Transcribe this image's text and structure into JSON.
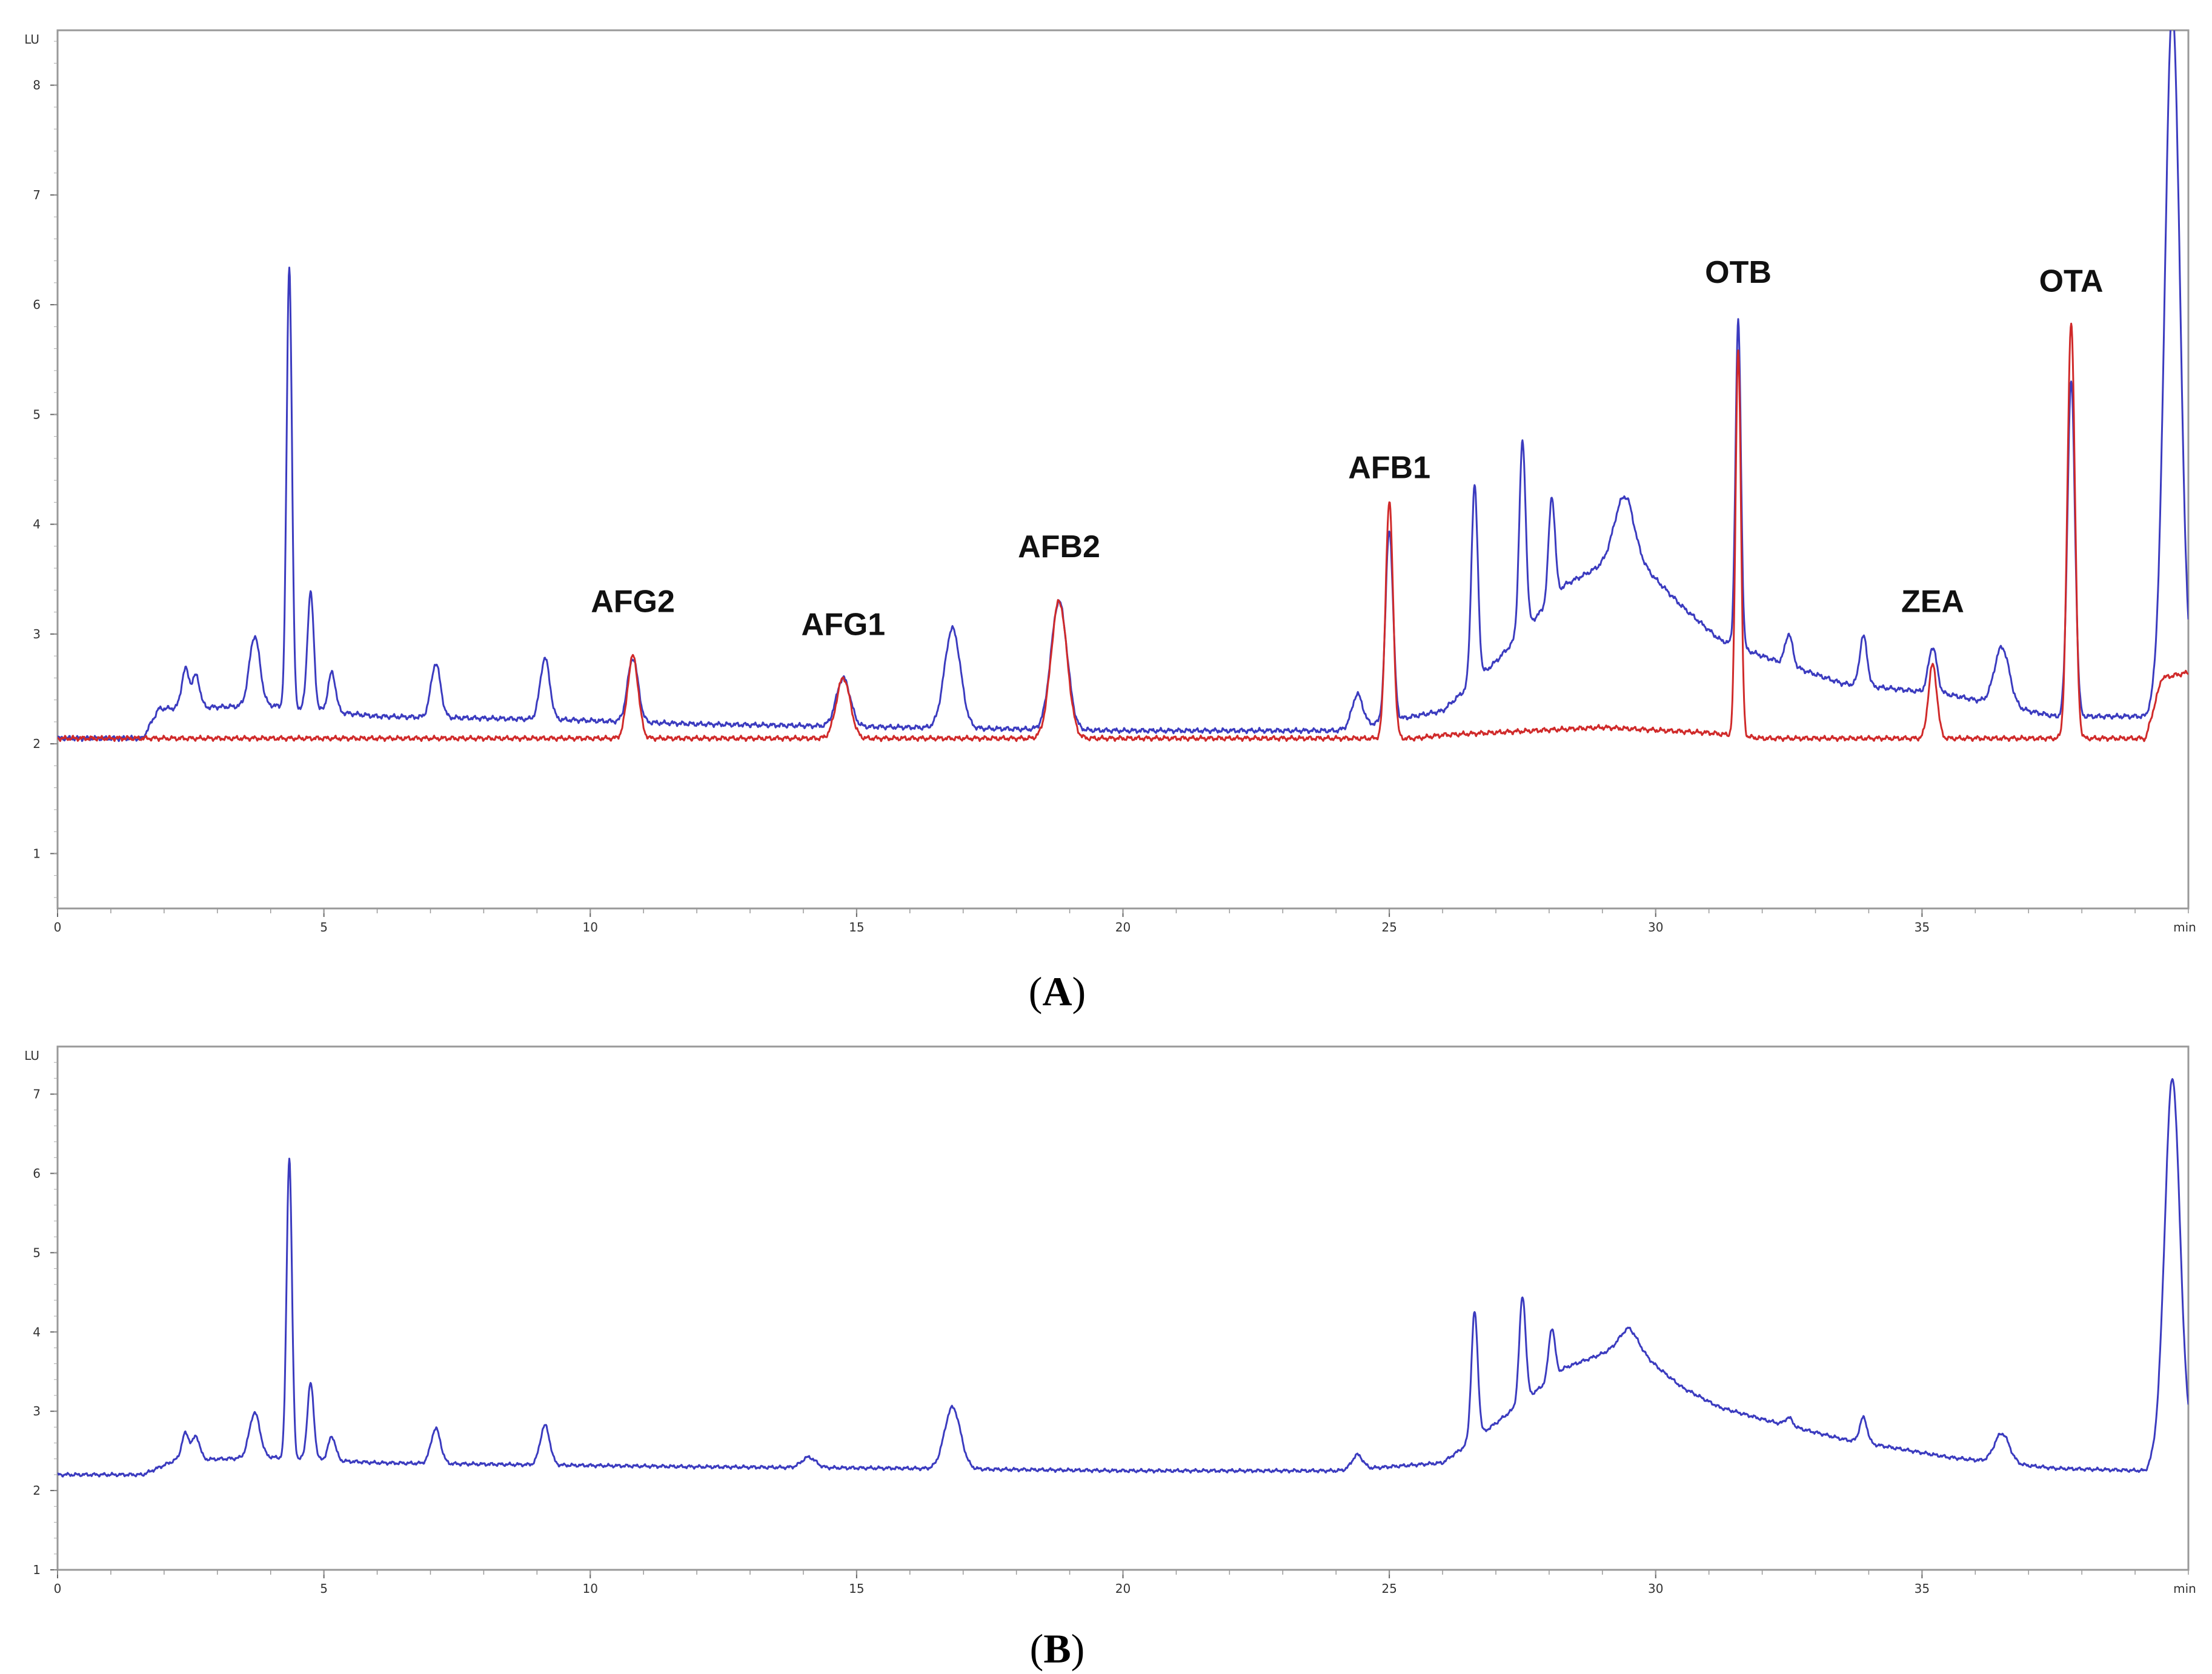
{
  "colors": {
    "sample": "#3b3bbf",
    "standard": "#d02a2a",
    "axis": "#666666",
    "frame": "#999999"
  },
  "chart_data": [
    {
      "type": "line",
      "panel_label": "A",
      "y_unit_label": "LU",
      "x_unit_label": "min",
      "xlim": [
        0,
        40
      ],
      "ylim": [
        0.5,
        8.5
      ],
      "x_ticks": [
        "0",
        "5",
        "10",
        "15",
        "20",
        "25",
        "30",
        "35"
      ],
      "y_ticks": [
        "1",
        "2",
        "3",
        "4",
        "5",
        "6",
        "7",
        "8"
      ],
      "series": [
        {
          "color": "#3b3bbf",
          "baseline": [
            [
              0,
              2.05
            ],
            [
              1.6,
              2.05
            ],
            [
              1.9,
              2.32
            ],
            [
              4.0,
              2.35
            ],
            [
              6,
              2.25
            ],
            [
              9.5,
              2.22
            ],
            [
              12,
              2.18
            ],
            [
              16,
              2.15
            ],
            [
              20,
              2.12
            ],
            [
              24,
              2.12
            ],
            [
              26,
              2.3
            ],
            [
              27.0,
              2.75
            ],
            [
              28.3,
              3.45
            ],
            [
              29.5,
              3.75
            ],
            [
              30.5,
              3.25
            ],
            [
              31.2,
              2.95
            ],
            [
              32.0,
              2.8
            ],
            [
              33.5,
              2.55
            ],
            [
              35.5,
              2.45
            ],
            [
              37.5,
              2.25
            ],
            [
              39.2,
              2.25
            ],
            [
              39.5,
              2.5
            ]
          ],
          "peaks": [
            {
              "t": 2.4,
              "h": 2.68,
              "w": 0.07
            },
            {
              "t": 2.6,
              "h": 2.62,
              "w": 0.07
            },
            {
              "t": 3.7,
              "h": 2.98,
              "w": 0.1
            },
            {
              "t": 4.35,
              "h": 6.35,
              "w": 0.05
            },
            {
              "t": 4.75,
              "h": 3.38,
              "w": 0.06
            },
            {
              "t": 5.15,
              "h": 2.65,
              "w": 0.07
            },
            {
              "t": 7.1,
              "h": 2.73,
              "w": 0.09
            },
            {
              "t": 9.15,
              "h": 2.78,
              "w": 0.09
            },
            {
              "t": 10.8,
              "h": 2.78,
              "w": 0.1
            },
            {
              "t": 14.75,
              "h": 2.6,
              "w": 0.13
            },
            {
              "t": 16.8,
              "h": 3.05,
              "w": 0.15
            },
            {
              "t": 18.8,
              "h": 3.3,
              "w": 0.15
            },
            {
              "t": 24.4,
              "h": 2.45,
              "w": 0.1
            },
            {
              "t": 25.0,
              "h": 3.95,
              "w": 0.07
            },
            {
              "t": 26.6,
              "h": 4.35,
              "w": 0.06
            },
            {
              "t": 27.5,
              "h": 4.75,
              "w": 0.06
            },
            {
              "t": 28.05,
              "h": 4.25,
              "w": 0.06
            },
            {
              "t": 29.4,
              "h": 4.25,
              "w": 0.18
            },
            {
              "t": 31.55,
              "h": 5.85,
              "w": 0.05
            },
            {
              "t": 32.5,
              "h": 3.0,
              "w": 0.07
            },
            {
              "t": 33.9,
              "h": 2.98,
              "w": 0.07
            },
            {
              "t": 35.2,
              "h": 2.88,
              "w": 0.08
            },
            {
              "t": 36.5,
              "h": 2.88,
              "w": 0.14
            },
            {
              "t": 37.8,
              "h": 5.3,
              "w": 0.07
            },
            {
              "t": 39.7,
              "h": 8.7,
              "w": 0.14
            }
          ]
        },
        {
          "color": "#d02a2a",
          "baseline": [
            [
              0,
              2.05
            ],
            [
              10,
              2.05
            ],
            [
              20,
              2.05
            ],
            [
              25.5,
              2.05
            ],
            [
              26.0,
              2.08
            ],
            [
              29.0,
              2.15
            ],
            [
              31.0,
              2.1
            ],
            [
              32.0,
              2.05
            ],
            [
              39.2,
              2.05
            ],
            [
              39.5,
              2.6
            ],
            [
              40,
              2.65
            ]
          ],
          "peaks": [
            {
              "t": 10.8,
              "h": 2.8,
              "w": 0.1
            },
            {
              "t": 14.75,
              "h": 2.6,
              "w": 0.13
            },
            {
              "t": 18.8,
              "h": 3.3,
              "w": 0.15
            },
            {
              "t": 25.0,
              "h": 4.2,
              "w": 0.07
            },
            {
              "t": 31.55,
              "h": 5.6,
              "w": 0.05
            },
            {
              "t": 35.2,
              "h": 2.72,
              "w": 0.08
            },
            {
              "t": 37.8,
              "h": 5.85,
              "w": 0.07
            }
          ]
        }
      ],
      "annotations": [
        {
          "text": "AFG2",
          "x": 10.8,
          "y": 3.2
        },
        {
          "text": "AFG1",
          "x": 14.75,
          "y": 2.99
        },
        {
          "text": "AFB2",
          "x": 18.8,
          "y": 3.7
        },
        {
          "text": "AFB1",
          "x": 25.0,
          "y": 4.42
        },
        {
          "text": "OTB",
          "x": 31.55,
          "y": 6.2
        },
        {
          "text": "ZEA",
          "x": 35.2,
          "y": 3.2
        },
        {
          "text": "OTA",
          "x": 37.8,
          "y": 6.12
        }
      ]
    },
    {
      "type": "line",
      "panel_label": "B",
      "y_unit_label": "LU",
      "x_unit_label": "min",
      "xlim": [
        0,
        40
      ],
      "ylim": [
        1,
        7.6
      ],
      "x_ticks": [
        "0",
        "5",
        "10",
        "15",
        "20",
        "25",
        "30",
        "35"
      ],
      "y_ticks": [
        "1",
        "2",
        "3",
        "4",
        "5",
        "6",
        "7"
      ],
      "series": [
        {
          "color": "#3b3bbf",
          "baseline": [
            [
              0,
              2.2
            ],
            [
              1.6,
              2.2
            ],
            [
              2.2,
              2.38
            ],
            [
              4.0,
              2.42
            ],
            [
              6,
              2.35
            ],
            [
              9.5,
              2.32
            ],
            [
              12,
              2.3
            ],
            [
              16,
              2.28
            ],
            [
              20,
              2.25
            ],
            [
              24,
              2.25
            ],
            [
              26,
              2.35
            ],
            [
              27.0,
              2.85
            ],
            [
              28.3,
              3.55
            ],
            [
              29.5,
              3.85
            ],
            [
              30.5,
              3.3
            ],
            [
              31.2,
              3.05
            ],
            [
              32.0,
              2.9
            ],
            [
              33.5,
              2.65
            ],
            [
              35.5,
              2.42
            ],
            [
              37.5,
              2.28
            ],
            [
              39.2,
              2.25
            ],
            [
              39.5,
              2.6
            ]
          ],
          "peaks": [
            {
              "t": 2.4,
              "h": 2.72,
              "w": 0.07
            },
            {
              "t": 2.6,
              "h": 2.68,
              "w": 0.07
            },
            {
              "t": 3.7,
              "h": 2.98,
              "w": 0.1
            },
            {
              "t": 4.35,
              "h": 6.2,
              "w": 0.05
            },
            {
              "t": 4.75,
              "h": 3.35,
              "w": 0.06
            },
            {
              "t": 5.15,
              "h": 2.68,
              "w": 0.07
            },
            {
              "t": 7.1,
              "h": 2.78,
              "w": 0.09
            },
            {
              "t": 9.15,
              "h": 2.82,
              "w": 0.09
            },
            {
              "t": 14.1,
              "h": 2.42,
              "w": 0.13
            },
            {
              "t": 16.8,
              "h": 3.05,
              "w": 0.15
            },
            {
              "t": 24.4,
              "h": 2.45,
              "w": 0.1
            },
            {
              "t": 26.6,
              "h": 4.25,
              "w": 0.06
            },
            {
              "t": 27.5,
              "h": 4.45,
              "w": 0.06
            },
            {
              "t": 28.05,
              "h": 4.05,
              "w": 0.06
            },
            {
              "t": 29.5,
              "h": 4.05,
              "w": 0.18
            },
            {
              "t": 32.5,
              "h": 2.92,
              "w": 0.07
            },
            {
              "t": 33.9,
              "h": 2.92,
              "w": 0.07
            },
            {
              "t": 36.5,
              "h": 2.72,
              "w": 0.14
            },
            {
              "t": 39.7,
              "h": 7.2,
              "w": 0.14
            }
          ]
        }
      ],
      "annotations": []
    }
  ]
}
